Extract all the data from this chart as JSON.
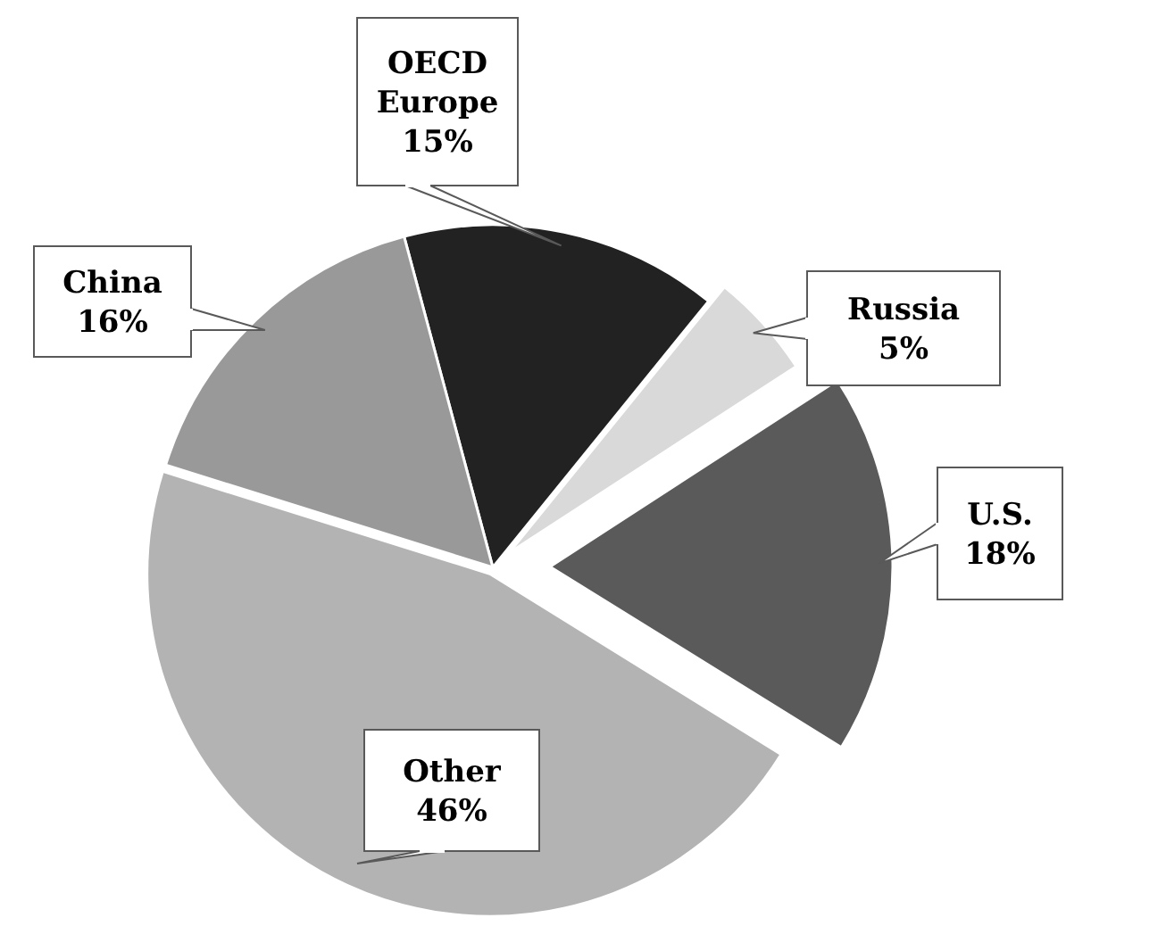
{
  "chart_data": {
    "type": "pie",
    "categories": [
      "OECD Europe",
      "Russia",
      "U.S.",
      "Other",
      "China"
    ],
    "values": [
      15,
      5,
      18,
      46,
      16
    ],
    "colors": [
      "#222222",
      "#d9d9d9",
      "#5a5a5a",
      "#b3b3b3",
      "#999999"
    ],
    "value_labels": [
      "15%",
      "5%",
      "18%",
      "46%",
      "16%"
    ]
  }
}
